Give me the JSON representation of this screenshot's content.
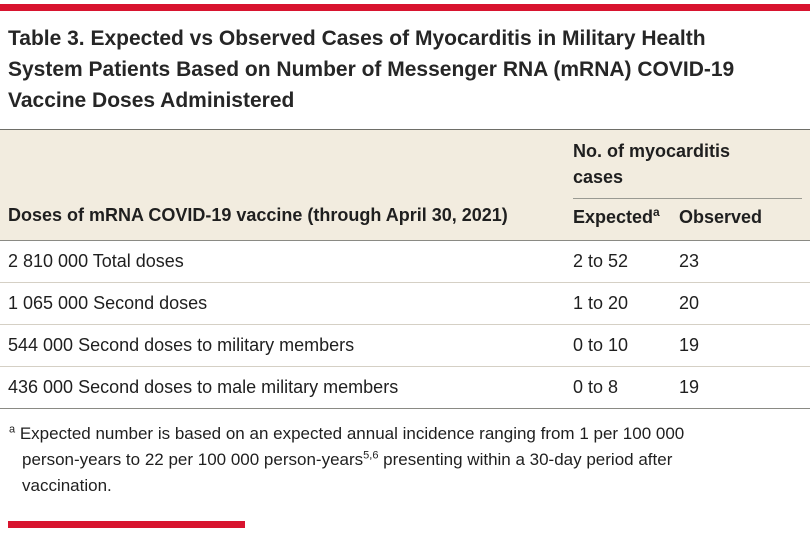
{
  "title": "Table 3. Expected vs Observed Cases of Myocarditis in Military Health System Patients Based on Number of Messenger RNA (mRNA) COVID-19 Vaccine Doses Administered",
  "table": {
    "doses_column_header": "Doses of mRNA COVID-19 vaccine (through April 30, 2021)",
    "group_header": "No. of myocarditis cases",
    "expected_header": "Expected",
    "expected_header_superscript": "a",
    "observed_header": "Observed",
    "rows": [
      {
        "doses": "2 810 000 Total doses",
        "expected": "2 to 52",
        "observed": "23"
      },
      {
        "doses": "1 065 000 Second doses",
        "expected": "1 to 20",
        "observed": "20"
      },
      {
        "doses": "544 000 Second doses to military members",
        "expected": "0 to 10",
        "observed": "19"
      },
      {
        "doses": "436 000 Second doses to male military members",
        "expected": "0 to 8",
        "observed": "19"
      }
    ]
  },
  "footnote": {
    "marker": "a",
    "text_before_reference": " Expected number is based on an expected annual incidence ranging from 1 per 100 000 person-years to 22 per 100 000 person-years",
    "reference_superscript": "5,6",
    "text_after_reference": " presenting within a 30-day period after vaccination."
  },
  "colors": {
    "accent_red": "#d8142f",
    "header_background": "#f2ecdf"
  }
}
